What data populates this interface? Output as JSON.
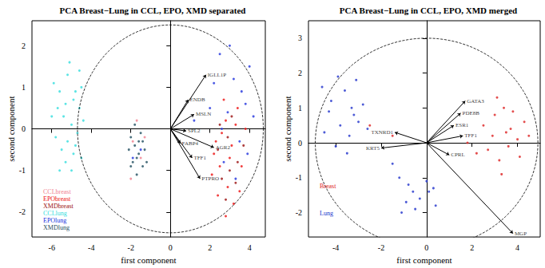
{
  "chart_data": [
    {
      "type": "scatter",
      "title": "PCA Breast−Lung in CCL, EPO, XMD separated",
      "x_label": "first component",
      "y_label": "second component",
      "xlim": [
        -7,
        4.8
      ],
      "ylim": [
        -2.6,
        2.6
      ],
      "xticks": [
        -6,
        -4,
        -2,
        0,
        2,
        4
      ],
      "yticks": [
        -2,
        -1,
        0,
        1,
        2
      ],
      "marker": "circle",
      "legend": "bottom left",
      "circle": {
        "x_radius": 4.7,
        "y_radius": 2.5
      },
      "series": [
        {
          "name": "CCLbreast",
          "color": "#f07f8f",
          "values": [
            [
              -1.9,
              -0.3
            ],
            [
              -1.5,
              -0.7
            ],
            [
              -2.0,
              -1.2
            ],
            [
              -1.3,
              -0.2
            ],
            [
              -1.7,
              0.2
            ]
          ]
        },
        {
          "name": "EPObreast",
          "color": "#ee1111",
          "values": [
            [
              2.8,
              0.2
            ],
            [
              3.1,
              -0.4
            ],
            [
              2.5,
              -0.9
            ],
            [
              3.4,
              0.5
            ],
            [
              2.9,
              -1.4
            ],
            [
              2.3,
              -0.3
            ],
            [
              3.6,
              -0.9
            ],
            [
              2.7,
              0.7
            ],
            [
              3.2,
              -1.8
            ],
            [
              2.4,
              -1.6
            ],
            [
              3.8,
              0.0
            ],
            [
              2.6,
              -0.1
            ],
            [
              3.0,
              -0.7
            ],
            [
              2.1,
              -1.1
            ],
            [
              3.5,
              -1.5
            ],
            [
              2.8,
              -2.1
            ],
            [
              3.3,
              0.1
            ],
            [
              2.2,
              -0.6
            ]
          ]
        },
        {
          "name": "XMDbreast",
          "color": "#9b1010",
          "values": [
            [
              2.9,
              -0.2
            ],
            [
              3.4,
              -0.8
            ],
            [
              2.6,
              -1.2
            ],
            [
              3.1,
              0.3
            ],
            [
              2.4,
              -0.5
            ],
            [
              3.7,
              -0.4
            ],
            [
              2.8,
              -1.7
            ],
            [
              3.0,
              -1.0
            ],
            [
              2.5,
              0.1
            ],
            [
              3.3,
              -1.3
            ]
          ]
        },
        {
          "name": "CCLlung",
          "color": "#33dddd",
          "values": [
            [
              -5.6,
              0.9
            ],
            [
              -5.2,
              1.3
            ],
            [
              -4.9,
              0.7
            ],
            [
              -5.4,
              0.3
            ],
            [
              -4.6,
              0.5
            ],
            [
              -5.0,
              0.1
            ],
            [
              -5.8,
              -0.2
            ],
            [
              -4.8,
              -0.4
            ],
            [
              -5.3,
              -0.8
            ],
            [
              -4.5,
              1.0
            ],
            [
              -5.1,
              1.6
            ],
            [
              -5.7,
              0.5
            ],
            [
              -4.7,
              -0.1
            ],
            [
              -5.5,
              -0.5
            ],
            [
              -4.4,
              0.2
            ],
            [
              -5.9,
              1.1
            ],
            [
              -5.0,
              -1.0
            ],
            [
              -4.6,
              1.4
            ],
            [
              -5.3,
              0.6
            ],
            [
              -4.9,
              -0.6
            ],
            [
              -5.6,
              -1.0
            ],
            [
              -4.8,
              0.9
            ],
            [
              -5.2,
              -0.3
            ],
            [
              -4.5,
              -0.7
            ],
            [
              -6.0,
              0.3
            ]
          ]
        },
        {
          "name": "EPOlung",
          "color": "#2233dd",
          "values": [
            [
              2.5,
              1.8
            ],
            [
              3.2,
              1.2
            ],
            [
              3.8,
              0.6
            ],
            [
              2.9,
              0.4
            ],
            [
              3.5,
              -0.3
            ],
            [
              2.2,
              1.1
            ],
            [
              4.0,
              1.5
            ],
            [
              3.0,
              2.0
            ],
            [
              2.7,
              -0.8
            ],
            [
              3.6,
              0.9
            ],
            [
              -1.5,
              -0.5
            ],
            [
              -1.9,
              -0.7
            ],
            [
              1.2,
              0.2
            ],
            [
              3.3,
              -1.2
            ],
            [
              2.0,
              0.5
            ],
            [
              4.2,
              0.3
            ],
            [
              2.6,
              0.0
            ],
            [
              3.9,
              -0.6
            ]
          ]
        },
        {
          "name": "XMDlung",
          "color": "#1f4e5f",
          "values": [
            [
              -1.8,
              -0.4
            ],
            [
              -1.6,
              -0.6
            ],
            [
              -2.0,
              -0.2
            ],
            [
              -1.4,
              -0.9
            ],
            [
              -1.9,
              -0.8
            ],
            [
              -1.5,
              -0.1
            ],
            [
              -2.1,
              -0.5
            ],
            [
              -1.7,
              -1.1
            ],
            [
              -1.3,
              -0.5
            ],
            [
              -1.8,
              0.1
            ],
            [
              -1.6,
              -0.3
            ],
            [
              -2.0,
              -0.9
            ],
            [
              -1.4,
              -0.3
            ],
            [
              -1.7,
              -0.7
            ],
            [
              -1.2,
              -0.8
            ]
          ]
        }
      ],
      "loadings": [
        {
          "label": "IGLL1P",
          "x": 1.8,
          "y": 1.3
        },
        {
          "label": "ENDB",
          "x": 0.9,
          "y": 0.7
        },
        {
          "label": "MSLN",
          "x": 1.2,
          "y": 0.35
        },
        {
          "label": "SPL2",
          "x": 0.8,
          "y": -0.05
        },
        {
          "label": "FABP4",
          "x": 0.5,
          "y": -0.35
        },
        {
          "label": "TFF1",
          "x": 1.1,
          "y": -0.7
        },
        {
          "label": "AGR2",
          "x": 2.2,
          "y": -0.45
        },
        {
          "label": "PTPRO",
          "x": 1.5,
          "y": -1.2
        }
      ]
    },
    {
      "type": "scatter",
      "title": "PCA Breast−Lung in CCL, EPO, XMD merged",
      "x_label": "first component",
      "y_label": "second component",
      "xlim": [
        -5.2,
        5
      ],
      "ylim": [
        -2.7,
        3.5
      ],
      "xticks": [
        -4,
        -2,
        0,
        2,
        4
      ],
      "yticks": [
        -2,
        -1,
        0,
        1,
        2,
        3
      ],
      "marker": "circle",
      "legend": "left",
      "circle": {
        "x_radius": 4.9,
        "y_radius": 3.0
      },
      "series": [
        {
          "name": "Breast",
          "color": "#dd2222",
          "values": [
            [
              3.5,
              0.3
            ],
            [
              3.0,
              0.8
            ],
            [
              4.0,
              0.1
            ],
            [
              2.7,
              -0.2
            ],
            [
              3.8,
              0.9
            ],
            [
              3.2,
              -0.5
            ],
            [
              4.3,
              0.6
            ],
            [
              2.5,
              0.5
            ],
            [
              3.6,
              -0.1
            ],
            [
              3.1,
              1.3
            ],
            [
              4.1,
              -0.4
            ],
            [
              2.9,
              0.2
            ],
            [
              3.4,
              1.0
            ],
            [
              2.2,
              -0.3
            ],
            [
              3.7,
              0.4
            ],
            [
              1.8,
              0.0
            ],
            [
              -2.5,
              0.5
            ],
            [
              -1.5,
              0.2
            ],
            [
              4.5,
              0.2
            ],
            [
              3.3,
              -0.9
            ]
          ]
        },
        {
          "name": "Lung",
          "color": "#2233cc",
          "values": [
            [
              -4.2,
              1.2
            ],
            [
              -3.8,
              0.5
            ],
            [
              -3.3,
              1.0
            ],
            [
              -4.5,
              0.3
            ],
            [
              -3.0,
              0.6
            ],
            [
              -3.6,
              1.5
            ],
            [
              -4.0,
              -0.1
            ],
            [
              -2.8,
              1.1
            ],
            [
              -3.4,
              0.2
            ],
            [
              -4.3,
              0.9
            ],
            [
              -3.1,
              1.8
            ],
            [
              -3.9,
              1.9
            ],
            [
              -2.6,
              0.4
            ],
            [
              -4.6,
              1.6
            ],
            [
              -3.5,
              -0.3
            ],
            [
              -3.2,
              0.8
            ],
            [
              -0.8,
              -1.2
            ],
            [
              -0.3,
              -1.6
            ],
            [
              0.1,
              -1.4
            ],
            [
              -1.2,
              -1.0
            ],
            [
              -0.5,
              -1.9
            ],
            [
              0.4,
              -1.8
            ],
            [
              -0.9,
              -1.7
            ],
            [
              0.0,
              -1.1
            ],
            [
              -1.5,
              -0.6
            ],
            [
              -0.6,
              -1.4
            ],
            [
              0.3,
              -1.3
            ],
            [
              -1.1,
              -2.0
            ]
          ]
        }
      ],
      "loadings": [
        {
          "label": "GATA3",
          "x": 1.7,
          "y": 1.2
        },
        {
          "label": "PDE8B",
          "x": 1.5,
          "y": 0.85
        },
        {
          "label": "ESR1",
          "x": 1.2,
          "y": 0.5
        },
        {
          "label": "TFF1",
          "x": 1.6,
          "y": 0.2
        },
        {
          "label": "CPRL",
          "x": 1.0,
          "y": -0.35
        },
        {
          "label": "TXNRD1",
          "x": -1.4,
          "y": 0.3
        },
        {
          "label": "KRT5",
          "x": -2.0,
          "y": -0.15
        },
        {
          "label": "MGP",
          "x": 3.8,
          "y": -2.6
        }
      ]
    }
  ]
}
